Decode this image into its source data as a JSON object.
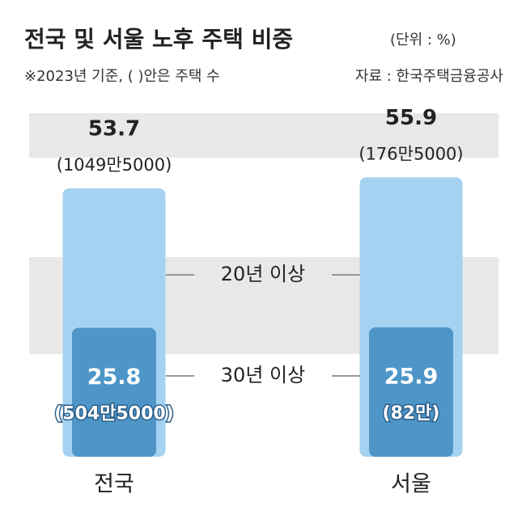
{
  "chart_data": {
    "type": "overlap_bar",
    "title": "전국 및 서울 노후 주택 비중",
    "unit": "(단위 : %)",
    "note": "※2023년 기준, ( )안은 주택 수",
    "source": "자료 : 한국주택금융공사",
    "categories": [
      "전국",
      "서울"
    ],
    "ylim": [
      0,
      60
    ],
    "series": [
      {
        "name": "20년 이상",
        "color": "#a6d2f1",
        "values": [
          53.7,
          55.9
        ],
        "count_labels": [
          "(1049만5000)",
          "(176만5000)"
        ]
      },
      {
        "name": "30년 이상",
        "color": "#4e96c8",
        "values": [
          25.8,
          25.9
        ],
        "count_labels": [
          "(504만5000)",
          "(82만)"
        ]
      }
    ]
  }
}
